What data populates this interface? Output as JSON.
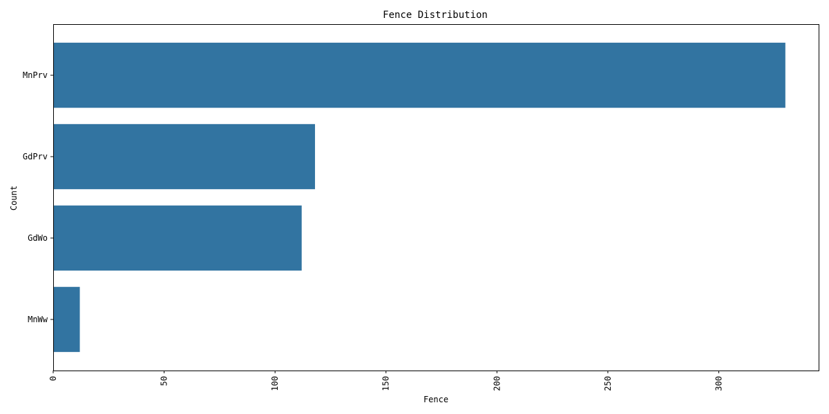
{
  "chart_data": {
    "type": "bar",
    "orientation": "horizontal",
    "title": "Fence Distribution",
    "xlabel": "Fence",
    "ylabel": "Count",
    "categories": [
      "MnPrv",
      "GdPrv",
      "GdWo",
      "MnWw"
    ],
    "values": [
      330,
      118,
      112,
      12
    ],
    "xlim": [
      0,
      345
    ],
    "xticks": [
      0,
      50,
      100,
      150,
      200,
      250,
      300
    ],
    "grid": false,
    "bar_color": "#3274a1"
  }
}
